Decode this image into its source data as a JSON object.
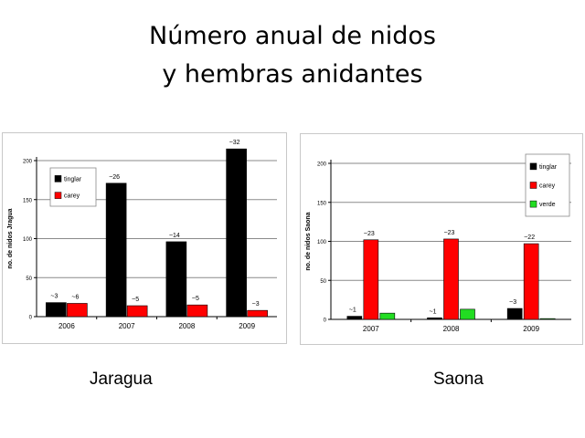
{
  "title_line1": "Número anual de nidos",
  "title_line2": "y hembras anidantes",
  "captions": {
    "left": "Jaragua",
    "right": "Saona"
  },
  "chart_data": [
    {
      "type": "bar",
      "panel": "left",
      "categories": [
        "2006",
        "2007",
        "2008",
        "2009"
      ],
      "ylabel": "no. de nidos Jragua",
      "ylim": [
        0,
        200
      ],
      "yticks": [
        0,
        50,
        100,
        150,
        200
      ],
      "grid": true,
      "legend": "top-left",
      "series": [
        {
          "name": "tinglar",
          "color": "#000000",
          "values": [
            18,
            171,
            96,
            215
          ],
          "labels": [
            "~3",
            "~26",
            "~14",
            "~32"
          ]
        },
        {
          "name": "carey",
          "color": "#ff0000",
          "values": [
            17,
            14,
            15,
            8
          ],
          "labels": [
            "~6",
            "~5",
            "~5",
            "~3"
          ]
        }
      ]
    },
    {
      "type": "bar",
      "panel": "right",
      "categories": [
        "2007",
        "2008",
        "2009"
      ],
      "ylabel": "no. de nidos Saona",
      "ylim": [
        0,
        200
      ],
      "yticks": [
        0,
        50,
        100,
        150,
        200
      ],
      "grid": true,
      "legend": "top-right",
      "series": [
        {
          "name": "tinglar",
          "color": "#000000",
          "values": [
            4,
            2,
            14
          ],
          "labels": [
            "~1",
            "~1",
            "~3"
          ]
        },
        {
          "name": "carey",
          "color": "#ff0000",
          "values": [
            102,
            103,
            97
          ],
          "labels": [
            "~23",
            "~23",
            "~22"
          ]
        },
        {
          "name": "verde",
          "color": "#22dd22",
          "values": [
            8,
            13,
            1
          ],
          "labels": [
            "",
            "",
            ""
          ]
        }
      ]
    }
  ]
}
